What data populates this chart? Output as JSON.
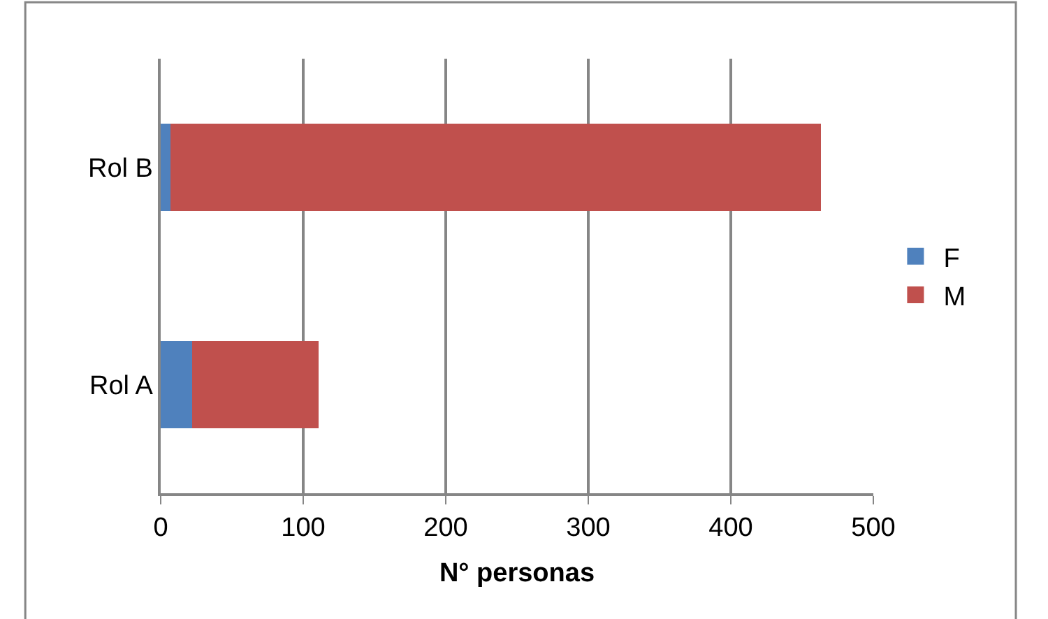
{
  "chart_data": {
    "type": "bar",
    "orientation": "horizontal",
    "stacked": true,
    "xlabel": "N° personas",
    "categories": [
      "Rol B",
      "Rol A"
    ],
    "series": [
      {
        "name": "F",
        "color": "#4f81bd",
        "values": [
          7,
          22
        ]
      },
      {
        "name": "M",
        "color": "#c0504d",
        "values": [
          456,
          89
        ]
      }
    ],
    "xlim": [
      0,
      500
    ],
    "xticks": [
      0,
      100,
      200,
      300,
      400,
      500
    ],
    "grid": "x",
    "legend": "right"
  }
}
